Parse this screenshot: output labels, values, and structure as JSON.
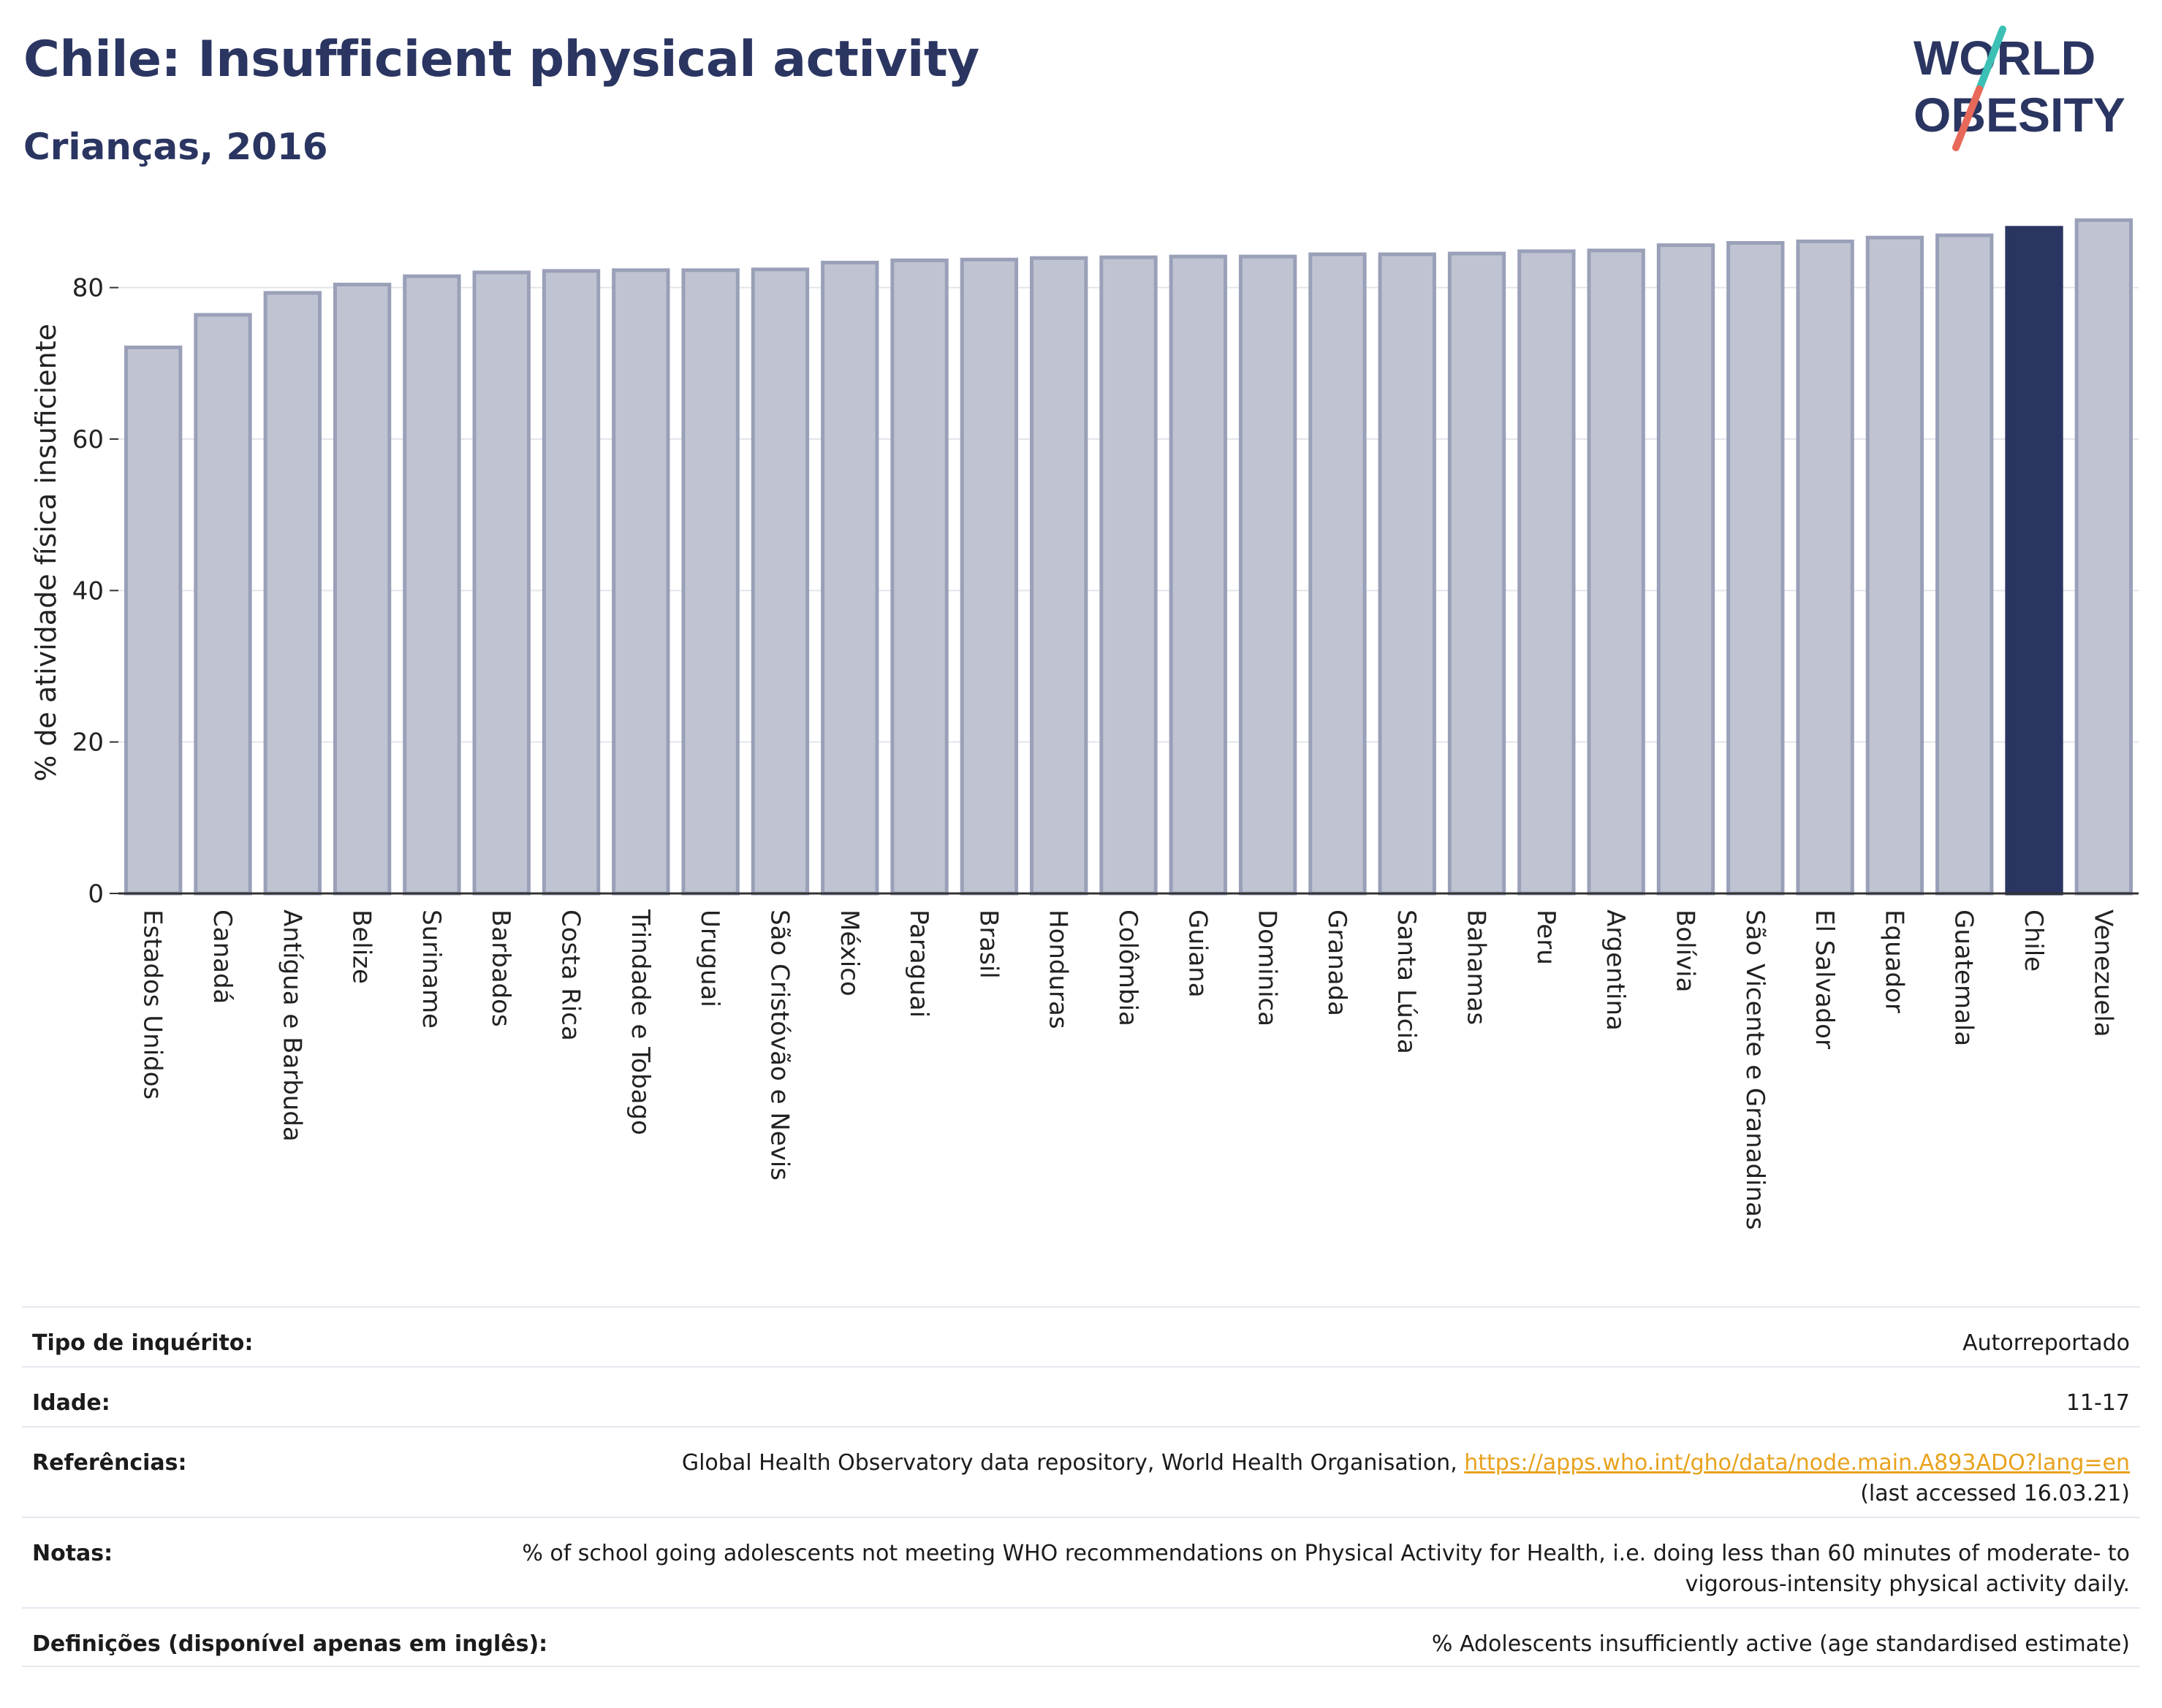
{
  "header": {
    "title": "Chile: Insufficient physical activity",
    "subtitle": "Crianças, 2016"
  },
  "logo": {
    "line1": "WORLD",
    "line2": "OBESITY",
    "colors": {
      "text": "#2b3561",
      "slash_teal": "#3cbfb4",
      "slash_coral": "#e8695a"
    }
  },
  "colors": {
    "bar_default": "#c0c4d2",
    "bar_border": "#9aa0b8",
    "bar_highlight": "#2b3561",
    "grid": "#e3e5ec",
    "axis": "#333333",
    "link": "#e8a21c"
  },
  "chart_data": {
    "type": "bar",
    "title": "",
    "ylabel": "% de atividade física insuficiente",
    "xlabel": "",
    "ylim": [
      0,
      90
    ],
    "yticks": [
      0,
      20,
      40,
      60,
      80
    ],
    "grid": true,
    "highlight": "Chile",
    "categories": [
      "Estados Unidos",
      "Canadá",
      "Antígua e Barbuda",
      "Belize",
      "Suriname",
      "Barbados",
      "Costa Rica",
      "Trindade e Tobago",
      "Uruguai",
      "São Cristóvão e Nevis",
      "México",
      "Paraguai",
      "Brasil",
      "Honduras",
      "Colômbia",
      "Guiana",
      "Dominica",
      "Granada",
      "Santa Lúcia",
      "Bahamas",
      "Peru",
      "Argentina",
      "Bolívia",
      "São Vicente e Granadinas",
      "El Salvador",
      "Equador",
      "Guatemala",
      "Chile",
      "Venezuela"
    ],
    "values": [
      72.1,
      76.4,
      79.3,
      80.4,
      81.5,
      82.0,
      82.2,
      82.3,
      82.3,
      82.4,
      83.3,
      83.6,
      83.7,
      83.9,
      84.0,
      84.1,
      84.1,
      84.4,
      84.4,
      84.5,
      84.8,
      84.9,
      85.6,
      85.9,
      86.1,
      86.6,
      86.9,
      87.9,
      88.9
    ]
  },
  "meta": [
    {
      "label": "Tipo de inquérito:",
      "value": "Autorreportado"
    },
    {
      "label": "Idade:",
      "value": "11-17"
    },
    {
      "label": "Referências:",
      "value": "Global Health Observatory data repository, World Health Organisation, ",
      "link": "https://apps.who.int/gho/data/node.main.A893ADO?lang=en",
      "value_after": "(last accessed 16.03.21)"
    },
    {
      "label": "Notas:",
      "value": "% of school going adolescents not meeting WHO recommendations on Physical Activity for Health, i.e. doing less than 60 minutes of moderate- to vigorous-intensity physical activity daily."
    },
    {
      "label": "Definições (disponível apenas em inglês):",
      "value": "% Adolescents insufficiently active (age standardised estimate)"
    }
  ]
}
